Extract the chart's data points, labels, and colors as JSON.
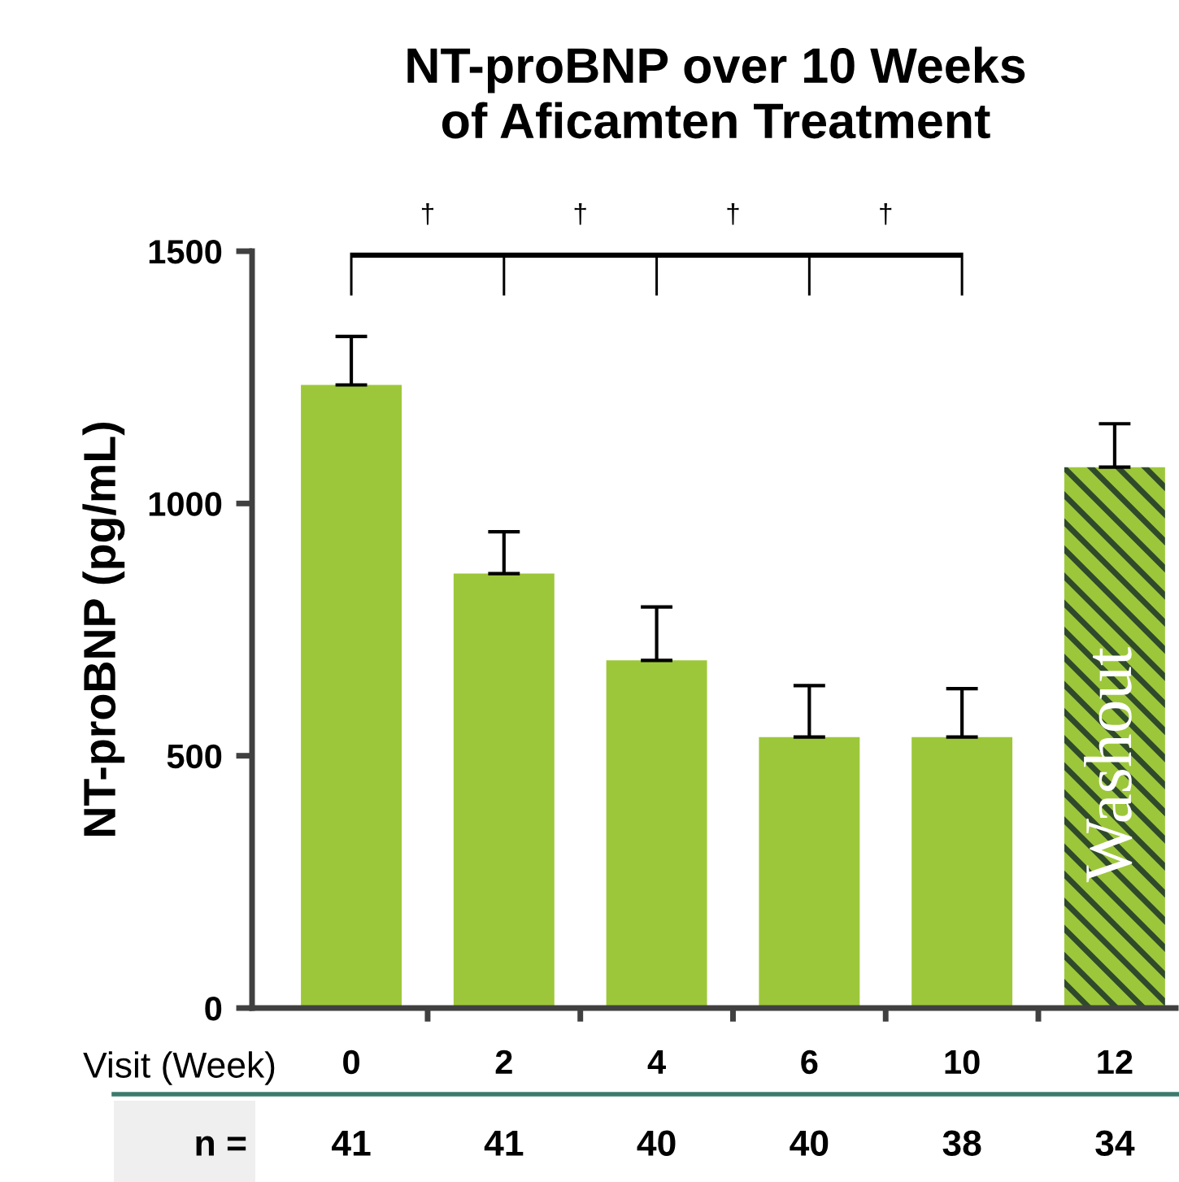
{
  "chart_data": {
    "type": "bar",
    "title": "NT-proBNP over 10 Weeks\nof Aficamten Treatment",
    "ylabel": "NT-proBNP (pg/mL)",
    "xlabel": "Visit (Week)",
    "categories": [
      "0",
      "2",
      "4",
      "6",
      "10",
      "12"
    ],
    "values": [
      1235,
      861,
      689,
      537,
      537,
      1072
    ],
    "errors": [
      [
        1235,
        1331
      ],
      [
        861,
        944
      ],
      [
        689,
        795
      ],
      [
        537,
        639
      ],
      [
        537,
        633
      ],
      [
        1072,
        1158
      ]
    ],
    "colors": [
      "#9dc73a",
      "#9dc73a",
      "#9dc73a",
      "#9dc73a",
      "#9dc73a",
      "#9dc73a"
    ],
    "ylim": [
      0,
      1500
    ],
    "yticks": [
      0,
      500,
      1000,
      1500
    ],
    "grid": false,
    "annotations": [
      "†",
      "†",
      "†",
      "†",
      "Washout",
      "n =",
      "41",
      "41",
      "40",
      "40",
      "38",
      "34"
    ]
  }
}
